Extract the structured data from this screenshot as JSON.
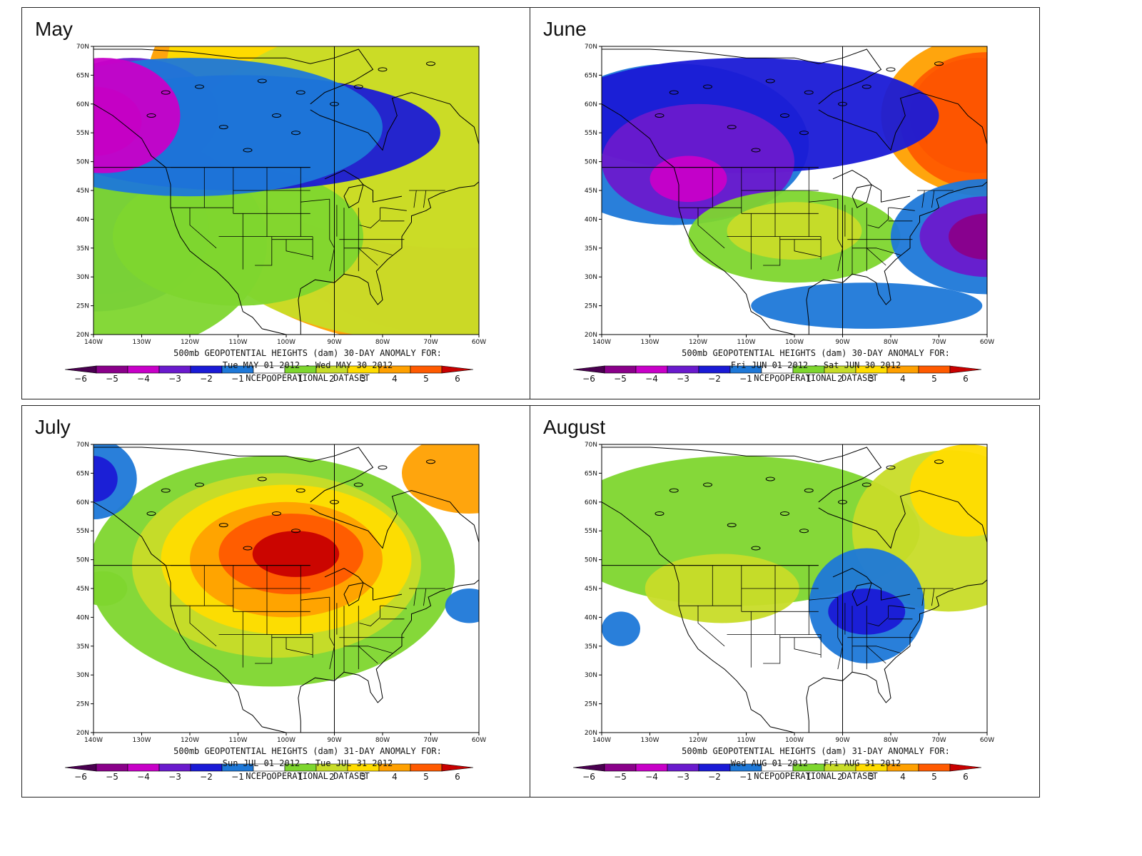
{
  "palette": [
    "#4a0050",
    "#8a008a",
    "#c800c8",
    "#6a1acd",
    "#1a1ad6",
    "#1e78d8",
    "#ffffff",
    "#7ed62e",
    "#c8dc28",
    "#ffdc00",
    "#ffa000",
    "#ff5a00",
    "#c80000"
  ],
  "lat_ticks": [
    "70N",
    "65N",
    "60N",
    "55N",
    "50N",
    "45N",
    "40N",
    "35N",
    "30N",
    "25N",
    "20N"
  ],
  "lon_ticks": [
    "140W",
    "130W",
    "120W",
    "110W",
    "100W",
    "90W",
    "80W",
    "70W",
    "60W"
  ],
  "colorbar_labels": [
    "−6",
    "−5",
    "−4",
    "−3",
    "−2",
    "−1",
    "0",
    "1",
    "2",
    "3",
    "4",
    "5",
    "6"
  ],
  "panels": [
    {
      "title": "May",
      "caption1": "500mb GEOPOTENTIAL HEIGHTS (dam)    30-DAY ANOMALY FOR:",
      "caption2": "Tue MAY 01 2012 - Wed MAY 30 2012",
      "caption3": "NCEP OPERATIONAL DATASET",
      "blobs": [
        {
          "cx": -52,
          "cy": 48,
          "rx": 22,
          "ry": 20,
          "v": 2
        },
        {
          "cx": -60,
          "cy": 45,
          "rx": 28,
          "ry": 22,
          "v": 3
        },
        {
          "cx": -62,
          "cy": 46,
          "rx": 36,
          "ry": 24,
          "v": 4
        },
        {
          "cx": -66,
          "cy": 50,
          "rx": 44,
          "ry": 30,
          "v": 5
        },
        {
          "cx": -70,
          "cy": 58,
          "rx": 60,
          "ry": 40,
          "v": 4
        },
        {
          "cx": -65,
          "cy": 65,
          "rx": 60,
          "ry": 30,
          "v": 3
        },
        {
          "cx": -72,
          "cy": 47,
          "rx": 52,
          "ry": 28,
          "v": 2
        },
        {
          "cx": -135,
          "cy": 37,
          "rx": 10,
          "ry": 8,
          "v": -3
        },
        {
          "cx": -138,
          "cy": 37,
          "rx": 16,
          "ry": 10,
          "v": -2
        },
        {
          "cx": -140,
          "cy": 38,
          "rx": 24,
          "ry": 14,
          "v": -1
        },
        {
          "cx": -140,
          "cy": 36,
          "rx": 36,
          "ry": 20,
          "v": 1
        },
        {
          "cx": -110,
          "cy": 37,
          "rx": 26,
          "ry": 12,
          "v": 1
        },
        {
          "cx": -132,
          "cy": 58,
          "rx": 18,
          "ry": 10,
          "v": -3
        },
        {
          "cx": -110,
          "cy": 55,
          "rx": 42,
          "ry": 10,
          "v": -2
        },
        {
          "cx": -120,
          "cy": 56,
          "rx": 40,
          "ry": 12,
          "v": -1
        },
        {
          "cx": -140,
          "cy": 57,
          "rx": 10,
          "ry": 6,
          "v": -5
        },
        {
          "cx": -138,
          "cy": 58,
          "rx": 16,
          "ry": 10,
          "v": -4
        }
      ]
    },
    {
      "title": "June",
      "caption1": "500mb GEOPOTENTIAL HEIGHTS (dam)    30-DAY ANOMALY FOR:",
      "caption2": "Fri JUN 01 2012 - Sat JUN 30 2012",
      "caption3": "NCEP OPERATIONAL DATASET",
      "blobs": [
        {
          "cx": -60,
          "cy": 58,
          "rx": 22,
          "ry": 14,
          "v": 4
        },
        {
          "cx": -62,
          "cy": 58,
          "rx": 14,
          "ry": 10,
          "v": 6
        },
        {
          "cx": -60,
          "cy": 57,
          "rx": 18,
          "ry": 12,
          "v": 5
        },
        {
          "cx": -125,
          "cy": 53,
          "rx": 28,
          "ry": 14,
          "v": -1
        },
        {
          "cx": -110,
          "cy": 58,
          "rx": 40,
          "ry": 10,
          "v": -2
        },
        {
          "cx": -120,
          "cy": 50,
          "rx": 20,
          "ry": 10,
          "v": -3
        },
        {
          "cx": -122,
          "cy": 47,
          "rx": 8,
          "ry": 4,
          "v": -4
        },
        {
          "cx": -100,
          "cy": 37,
          "rx": 22,
          "ry": 8,
          "v": 1
        },
        {
          "cx": -100,
          "cy": 38,
          "rx": 14,
          "ry": 5,
          "v": 2
        },
        {
          "cx": -60,
          "cy": 37,
          "rx": 20,
          "ry": 10,
          "v": -1
        },
        {
          "cx": -60,
          "cy": 37,
          "rx": 14,
          "ry": 7,
          "v": -3
        },
        {
          "cx": -60,
          "cy": 37,
          "rx": 8,
          "ry": 4,
          "v": -5
        },
        {
          "cx": -85,
          "cy": 25,
          "rx": 24,
          "ry": 4,
          "v": -1
        }
      ]
    },
    {
      "title": "July",
      "caption1": "500mb GEOPOTENTIAL HEIGHTS (dam)    31-DAY ANOMALY FOR:",
      "caption2": "Sun JUL 01 2012 - Tue JUL 31 2012",
      "caption3": "NCEP OPERATIONAL DATASET",
      "blobs": [
        {
          "cx": -103,
          "cy": 48,
          "rx": 38,
          "ry": 20,
          "v": 1
        },
        {
          "cx": -102,
          "cy": 49,
          "rx": 30,
          "ry": 16,
          "v": 2
        },
        {
          "cx": -100,
          "cy": 50,
          "rx": 26,
          "ry": 13,
          "v": 3
        },
        {
          "cx": -100,
          "cy": 50,
          "rx": 20,
          "ry": 10,
          "v": 4
        },
        {
          "cx": -99,
          "cy": 51,
          "rx": 15,
          "ry": 7,
          "v": 5
        },
        {
          "cx": -98,
          "cy": 51,
          "rx": 9,
          "ry": 4,
          "v": 6
        },
        {
          "cx": -140,
          "cy": 64,
          "rx": 9,
          "ry": 7,
          "v": -1
        },
        {
          "cx": -140,
          "cy": 64,
          "rx": 5,
          "ry": 4,
          "v": -2
        },
        {
          "cx": -62,
          "cy": 65,
          "rx": 14,
          "ry": 7,
          "v": 4
        },
        {
          "cx": -138,
          "cy": 45,
          "rx": 5,
          "ry": 3,
          "v": 1
        },
        {
          "cx": -62,
          "cy": 42,
          "rx": 5,
          "ry": 3,
          "v": -1
        }
      ]
    },
    {
      "title": "August",
      "caption1": "500mb GEOPOTENTIAL HEIGHTS (dam)    31-DAY ANOMALY FOR:",
      "caption2": "Wed AUG 01 2012 - Fri AUG 31 2012",
      "caption3": "NCEP OPERATIONAL DATASET",
      "blobs": [
        {
          "cx": -112,
          "cy": 55,
          "rx": 38,
          "ry": 13,
          "v": 1
        },
        {
          "cx": -68,
          "cy": 55,
          "rx": 20,
          "ry": 14,
          "v": 2
        },
        {
          "cx": -64,
          "cy": 62,
          "rx": 12,
          "ry": 8,
          "v": 3
        },
        {
          "cx": -115,
          "cy": 45,
          "rx": 16,
          "ry": 6,
          "v": 2
        },
        {
          "cx": -85,
          "cy": 42,
          "rx": 12,
          "ry": 10,
          "v": -1
        },
        {
          "cx": -85,
          "cy": 41,
          "rx": 8,
          "ry": 4,
          "v": -2
        },
        {
          "cx": -136,
          "cy": 38,
          "rx": 4,
          "ry": 3,
          "v": -1
        }
      ]
    }
  ]
}
